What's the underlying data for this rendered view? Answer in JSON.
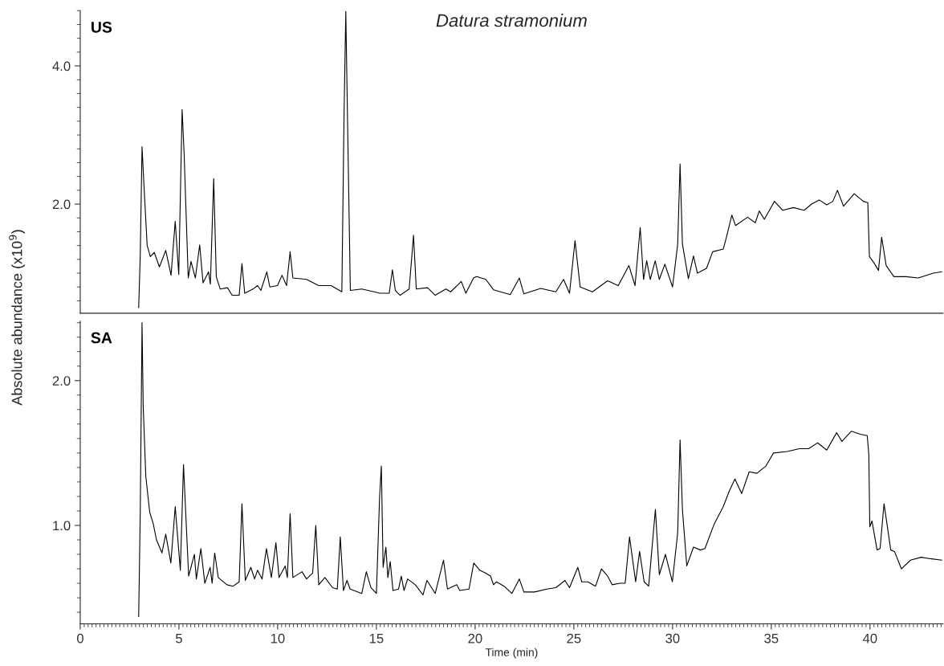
{
  "chart_data": [
    {
      "type": "line",
      "title": "Datura stramonium",
      "ylabel": "Absolute abundance (x10$^{9}$)",
      "tick_labels": "y",
      "xlim": [
        0,
        43.7
      ],
      "ylim": [
        0.42,
        4.8
      ],
      "yticks": [
        {
          "value": 2,
          "label": "2.0"
        },
        {
          "value": 4,
          "label": "4.0"
        }
      ],
      "grid": false,
      "legend": false,
      "series": [
        {
          "name": "US",
          "color": "#000000",
          "x": [
            2.96,
            3.04,
            3.13,
            3.24,
            3.39,
            3.55,
            3.75,
            4.01,
            4.33,
            4.6,
            4.81,
            4.99,
            5.16,
            5.26,
            5.47,
            5.61,
            5.83,
            6.05,
            6.22,
            6.5,
            6.59,
            6.76,
            6.89,
            7.09,
            7.46,
            7.69,
            8.05,
            8.19,
            8.33,
            8.75,
            8.98,
            9.15,
            9.45,
            9.6,
            9.99,
            10.22,
            10.45,
            10.63,
            10.77,
            11.46,
            12.08,
            12.71,
            13.25,
            13.36,
            13.45,
            13.54,
            13.68,
            14.26,
            15.19,
            15.65,
            15.81,
            15.96,
            16.2,
            16.66,
            16.88,
            17.02,
            17.59,
            17.98,
            18.52,
            18.76,
            19.3,
            19.53,
            19.92,
            20.08,
            20.54,
            20.93,
            21.78,
            22.24,
            22.47,
            23.32,
            24.09,
            24.48,
            24.78,
            25.06,
            25.32,
            25.94,
            26.71,
            27.25,
            27.79,
            28.1,
            28.36,
            28.53,
            28.69,
            28.87,
            29.12,
            29.33,
            29.61,
            30.0,
            30.26,
            30.38,
            30.5,
            30.8,
            31.06,
            31.26,
            31.72,
            32.03,
            32.57,
            32.72,
            33.0,
            33.19,
            33.8,
            34.19,
            34.39,
            34.65,
            35.16,
            35.58,
            36.12,
            36.66,
            37.04,
            37.43,
            37.81,
            38.12,
            38.35,
            38.66,
            39.2,
            39.66,
            39.89,
            39.97,
            40.2,
            40.43,
            40.59,
            40.82,
            41.21,
            41.82,
            42.44,
            43.21,
            43.64
          ],
          "values": [
            0.5,
            1.26,
            2.83,
            2.2,
            1.4,
            1.24,
            1.3,
            1.09,
            1.33,
            0.97,
            1.75,
            0.98,
            3.37,
            2.74,
            0.93,
            1.17,
            0.93,
            1.41,
            0.86,
            1.02,
            0.84,
            2.37,
            0.95,
            0.77,
            0.79,
            0.68,
            0.68,
            1.14,
            0.71,
            0.77,
            0.82,
            0.75,
            1.02,
            0.8,
            0.82,
            0.97,
            0.82,
            1.31,
            0.93,
            0.91,
            0.82,
            0.82,
            0.73,
            3.27,
            4.79,
            3.18,
            0.75,
            0.77,
            0.71,
            0.71,
            1.05,
            0.75,
            0.68,
            0.77,
            1.55,
            0.77,
            0.79,
            0.68,
            0.77,
            0.73,
            0.88,
            0.71,
            0.93,
            0.95,
            0.91,
            0.76,
            0.69,
            0.93,
            0.7,
            0.78,
            0.73,
            0.91,
            0.71,
            1.47,
            0.8,
            0.73,
            0.89,
            0.82,
            1.11,
            0.82,
            1.66,
            0.91,
            1.18,
            0.91,
            1.18,
            0.91,
            1.13,
            0.8,
            1.42,
            2.58,
            1.42,
            0.92,
            1.25,
            1.0,
            1.07,
            1.31,
            1.35,
            1.51,
            1.84,
            1.69,
            1.81,
            1.73,
            1.9,
            1.78,
            2.04,
            1.91,
            1.95,
            1.91,
            2.0,
            2.06,
            1.99,
            2.04,
            2.2,
            1.97,
            2.15,
            2.04,
            2.02,
            1.24,
            1.15,
            1.04,
            1.52,
            1.11,
            0.95,
            0.95,
            0.93,
            1.0,
            1.02
          ]
        }
      ]
    },
    {
      "type": "line",
      "xlabel": "Time (min)",
      "xlim": [
        0,
        43.7
      ],
      "xticks": [
        0,
        5,
        10,
        15,
        20,
        25,
        30,
        35,
        40
      ],
      "ylim": [
        0.32,
        2.41
      ],
      "yticks": [
        {
          "value": 1,
          "label": "1.0"
        },
        {
          "value": 2,
          "label": "2.0"
        }
      ],
      "grid": false,
      "legend": false,
      "series": [
        {
          "name": "SA",
          "color": "#000000",
          "x": [
            2.96,
            3.04,
            3.13,
            3.19,
            3.32,
            3.52,
            3.7,
            3.86,
            4.14,
            4.33,
            4.59,
            4.81,
            5.07,
            5.23,
            5.49,
            5.78,
            5.88,
            6.11,
            6.31,
            6.58,
            6.68,
            6.81,
            6.99,
            7.43,
            7.74,
            8.05,
            8.19,
            8.36,
            8.64,
            8.83,
            8.98,
            9.21,
            9.43,
            9.68,
            9.91,
            10.07,
            10.38,
            10.49,
            10.63,
            10.77,
            11.23,
            11.46,
            11.77,
            11.93,
            12.08,
            12.39,
            12.78,
            13.02,
            13.17,
            13.33,
            13.51,
            13.67,
            14.26,
            14.49,
            14.72,
            15.0,
            15.16,
            15.25,
            15.34,
            15.48,
            15.58,
            15.7,
            15.84,
            16.12,
            16.26,
            16.4,
            16.58,
            16.97,
            17.36,
            17.56,
            17.98,
            18.4,
            18.6,
            19.07,
            19.22,
            19.69,
            19.93,
            20.24,
            20.54,
            20.78,
            20.93,
            21.08,
            21.47,
            21.86,
            22.24,
            22.47,
            23.01,
            23.63,
            24.09,
            24.55,
            24.78,
            25.2,
            25.4,
            25.71,
            26.1,
            26.4,
            26.71,
            26.94,
            27.33,
            27.6,
            27.82,
            28.13,
            28.33,
            28.56,
            28.79,
            29.13,
            29.33,
            29.64,
            29.99,
            30.26,
            30.38,
            30.5,
            30.72,
            31.06,
            31.41,
            31.64,
            32.11,
            32.57,
            32.88,
            33.16,
            33.5,
            33.88,
            34.27,
            34.73,
            35.11,
            35.81,
            36.42,
            36.89,
            37.35,
            37.81,
            38.31,
            38.58,
            39.05,
            39.51,
            39.86,
            39.94,
            39.99,
            40.1,
            40.36,
            40.51,
            40.71,
            40.86,
            41.05,
            41.24,
            41.59,
            42.05,
            42.59,
            43.05,
            43.64
          ],
          "values": [
            0.37,
            1.09,
            2.4,
            1.82,
            1.34,
            1.09,
            1.01,
            0.9,
            0.81,
            0.94,
            0.74,
            1.13,
            0.69,
            1.42,
            0.65,
            0.8,
            0.63,
            0.84,
            0.6,
            0.71,
            0.6,
            0.81,
            0.64,
            0.59,
            0.58,
            0.61,
            1.15,
            0.62,
            0.71,
            0.63,
            0.69,
            0.63,
            0.84,
            0.64,
            0.88,
            0.64,
            0.72,
            0.64,
            1.08,
            0.64,
            0.68,
            0.63,
            0.67,
            1.0,
            0.59,
            0.64,
            0.57,
            0.56,
            0.92,
            0.55,
            0.62,
            0.56,
            0.53,
            0.68,
            0.57,
            0.53,
            1.19,
            1.41,
            0.71,
            0.85,
            0.64,
            0.75,
            0.55,
            0.56,
            0.65,
            0.55,
            0.63,
            0.59,
            0.52,
            0.62,
            0.53,
            0.76,
            0.56,
            0.59,
            0.55,
            0.56,
            0.74,
            0.69,
            0.67,
            0.65,
            0.59,
            0.61,
            0.58,
            0.53,
            0.63,
            0.54,
            0.54,
            0.56,
            0.57,
            0.62,
            0.57,
            0.71,
            0.61,
            0.61,
            0.58,
            0.7,
            0.65,
            0.59,
            0.6,
            0.6,
            0.92,
            0.61,
            0.82,
            0.61,
            0.58,
            1.11,
            0.66,
            0.8,
            0.61,
            0.95,
            1.59,
            1.11,
            0.72,
            0.85,
            0.83,
            0.84,
            1.01,
            1.13,
            1.24,
            1.32,
            1.22,
            1.37,
            1.36,
            1.41,
            1.5,
            1.51,
            1.53,
            1.53,
            1.57,
            1.52,
            1.64,
            1.58,
            1.65,
            1.63,
            1.62,
            1.49,
            0.99,
            1.03,
            0.83,
            0.84,
            1.15,
            1.01,
            0.83,
            0.82,
            0.7,
            0.76,
            0.78,
            0.77,
            0.76
          ]
        }
      ]
    }
  ]
}
